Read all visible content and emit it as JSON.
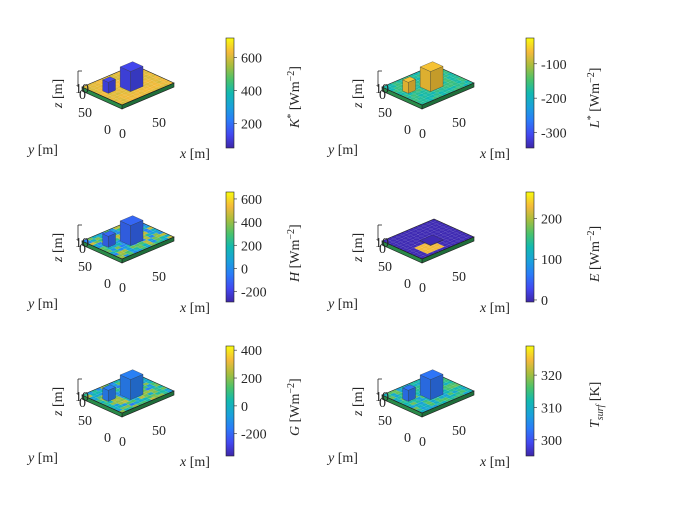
{
  "chart_data": [
    {
      "type": "heatmap",
      "id": "kstar",
      "view": "3d-surface",
      "zlabel": "z [m]",
      "ylabel": "y [m]",
      "xlabel": "x [m]",
      "ztick_labels": [
        "10",
        "0"
      ],
      "ytick_labels": [
        "50",
        "0"
      ],
      "xtick_labels": [
        "0",
        "50"
      ],
      "colorbar": {
        "label_sym": "K",
        "label_sup": "*",
        "label_unit": "[Wm",
        "label_exp": "−2",
        "label_end": "]",
        "range": [
          50,
          720
        ],
        "ticks": [
          {
            "value": 200,
            "label": "200"
          },
          {
            "value": 400,
            "label": "400"
          },
          {
            "value": 600,
            "label": "600"
          }
        ]
      },
      "ground_value": 620,
      "building_value": 130
    },
    {
      "type": "heatmap",
      "id": "lstar",
      "view": "3d-surface",
      "zlabel": "z [m]",
      "ylabel": "y [m]",
      "xlabel": "x [m]",
      "ztick_labels": [
        "10",
        "0"
      ],
      "ytick_labels": [
        "50",
        "0"
      ],
      "xtick_labels": [
        "0",
        "50"
      ],
      "colorbar": {
        "label_sym": "L",
        "label_sup": "*",
        "label_unit": "[Wm",
        "label_exp": "−2",
        "label_end": "]",
        "range": [
          -345,
          -25
        ],
        "ticks": [
          {
            "value": -100,
            "label": "-100"
          },
          {
            "value": -200,
            "label": "-200"
          },
          {
            "value": -300,
            "label": "-300"
          }
        ]
      },
      "ground_value": -170,
      "building_value": -60
    },
    {
      "type": "heatmap",
      "id": "h",
      "view": "3d-surface",
      "zlabel": "z [m]",
      "ylabel": "y [m]",
      "xlabel": "x [m]",
      "ztick_labels": [
        "10",
        "0"
      ],
      "ytick_labels": [
        "50",
        "0"
      ],
      "xtick_labels": [
        "0",
        "50"
      ],
      "colorbar": {
        "label_sym": "H",
        "label_sup": "",
        "label_unit": "[Wm",
        "label_exp": "−2",
        "label_end": "]",
        "range": [
          -290,
          660
        ],
        "ticks": [
          {
            "value": 600,
            "label": "600"
          },
          {
            "value": 400,
            "label": "400"
          },
          {
            "value": 200,
            "label": "200"
          },
          {
            "value": 0,
            "label": "0"
          },
          {
            "value": -200,
            "label": "-200"
          }
        ]
      },
      "ground_value": 220,
      "building_value": -100
    },
    {
      "type": "heatmap",
      "id": "e",
      "view": "3d-surface",
      "zlabel": "z [m]",
      "ylabel": "y [m]",
      "xlabel": "x [m]",
      "ztick_labels": [
        "10",
        "0"
      ],
      "ytick_labels": [
        "50",
        "0"
      ],
      "xtick_labels": [
        "0",
        "50"
      ],
      "colorbar": {
        "label_sym": "E",
        "label_sup": "",
        "label_unit": "[Wm",
        "label_exp": "−2",
        "label_end": "]",
        "range": [
          -5,
          265
        ],
        "ticks": [
          {
            "value": 200,
            "label": "200"
          },
          {
            "value": 100,
            "label": "100"
          },
          {
            "value": 0,
            "label": "0"
          }
        ]
      },
      "ground_value": 0,
      "building_value": 0,
      "patch_value": 230
    },
    {
      "type": "heatmap",
      "id": "g",
      "view": "3d-surface",
      "zlabel": "z [m]",
      "ylabel": "y [m]",
      "xlabel": "x [m]",
      "ztick_labels": [
        "10",
        "0"
      ],
      "ytick_labels": [
        "50",
        "0"
      ],
      "xtick_labels": [
        "0",
        "50"
      ],
      "colorbar": {
        "label_sym": "G",
        "label_sup": "",
        "label_unit": "[Wm",
        "label_exp": "−2",
        "label_end": "]",
        "range": [
          -360,
          430
        ],
        "ticks": [
          {
            "value": 400,
            "label": "400"
          },
          {
            "value": 200,
            "label": "200"
          },
          {
            "value": 0,
            "label": "0"
          },
          {
            "value": -200,
            "label": "-200"
          }
        ]
      },
      "ground_value": 60,
      "building_value": -150
    },
    {
      "type": "heatmap",
      "id": "tsurf",
      "view": "3d-surface",
      "zlabel": "z [m]",
      "ylabel": "y [m]",
      "xlabel": "x [m]",
      "ztick_labels": [
        "10",
        "0"
      ],
      "ytick_labels": [
        "50",
        "0"
      ],
      "xtick_labels": [
        "0",
        "50"
      ],
      "colorbar": {
        "label_sym": "T",
        "label_sub": "surf",
        "label_unit": "[K]",
        "range": [
          295,
          329
        ],
        "ticks": [
          {
            "value": 320,
            "label": "320"
          },
          {
            "value": 310,
            "label": "310"
          },
          {
            "value": 300,
            "label": "300"
          }
        ]
      },
      "ground_value": 313,
      "building_value": 303
    }
  ]
}
